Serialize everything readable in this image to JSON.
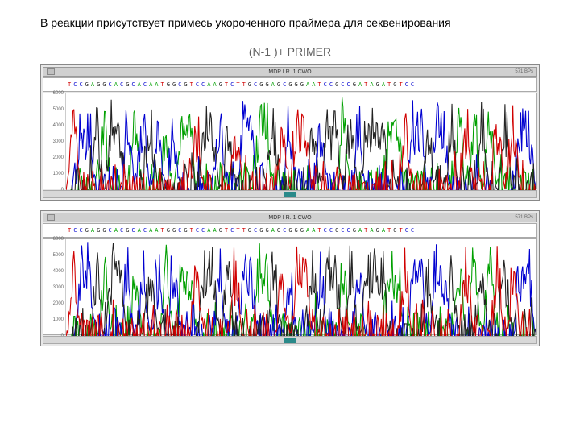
{
  "title": "В реакции присутствует примесь укороченного праймера для секвенирования",
  "subtitle": "(N-1 )+ PRIMER",
  "base_colors": {
    "A": "#00a000",
    "C": "#0000d0",
    "G": "#222222",
    "T": "#d00000"
  },
  "chart_style": {
    "background": "#ffffff",
    "panel_bg": "#e8e8e8",
    "border": "#888888",
    "line_width": 1,
    "font_size_axis": 6,
    "y_label_color": "#666666"
  },
  "panels": [
    {
      "header": "MDP  I R. 1  CWO",
      "header_right": "571 BPs",
      "sequence": "TCCGAGGCACGCACAATGGCGTCCAAGTCTTGCGGAGCGGGAATCCGCCGATAGATGTCC",
      "yaxis": {
        "min": 0,
        "max": 6000,
        "ticks": [
          0,
          1000,
          2000,
          3000,
          4000,
          5000,
          6000
        ]
      },
      "n_peaks": 60,
      "seed": 11
    },
    {
      "header": "MDP  I R. 1  CWO",
      "header_right": "571 BPs",
      "sequence": "TCCGAGGCACGCACAATGGCGTCCAAGTCTTGCGGAGCGGGAATCCGCCGATAGATGTCC",
      "yaxis": {
        "min": 0,
        "max": 6000,
        "ticks": [
          0,
          1000,
          2000,
          3000,
          4000,
          5000,
          6000
        ]
      },
      "n_peaks": 60,
      "seed": 29
    }
  ]
}
